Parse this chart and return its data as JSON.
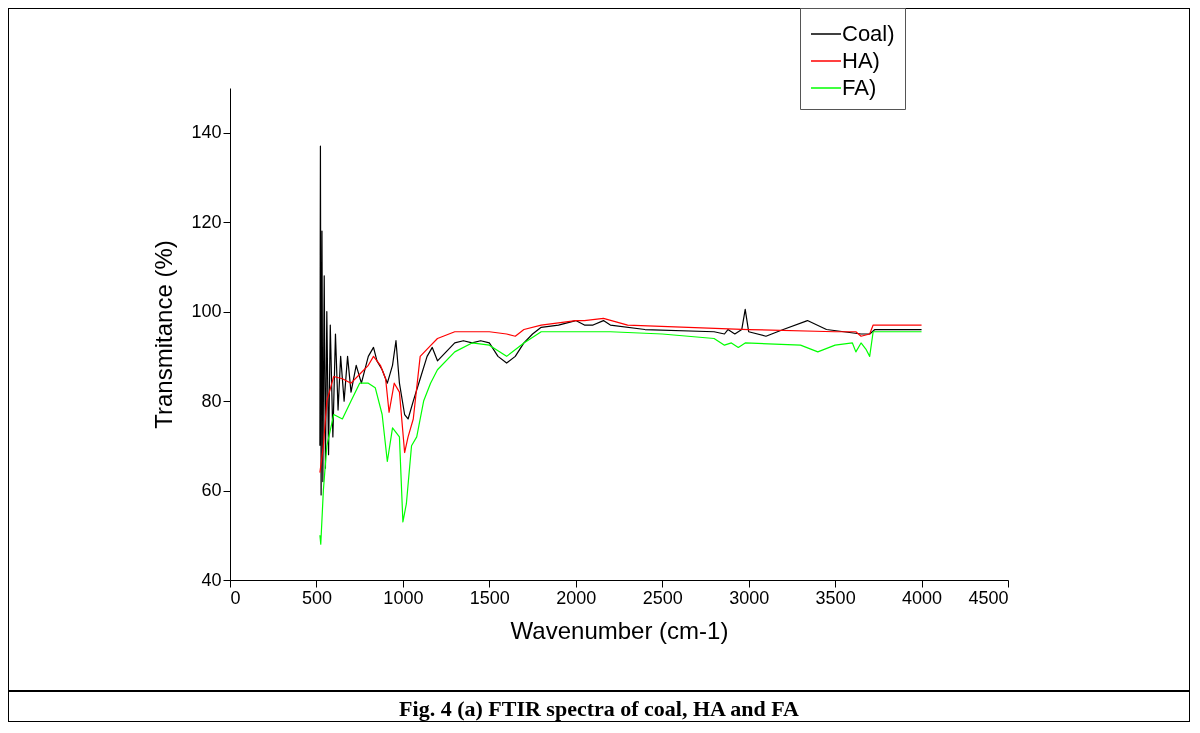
{
  "chart_data": {
    "type": "line",
    "xlabel": "Wavenumber (cm-1)",
    "ylabel": "Transmitance (%)",
    "xlim": [
      0,
      4500
    ],
    "xticks": [
      0,
      500,
      1000,
      1500,
      2000,
      2500,
      3000,
      3500,
      4000,
      4500
    ],
    "ylim": [
      40,
      150
    ],
    "yticks": [
      40,
      60,
      80,
      100,
      120,
      140
    ],
    "grid": false,
    "legend": "top right",
    "marker": "none",
    "line_style": "solid",
    "annotations": [
      "Fig. 4 (a)  FTIR spectra of coal, HA and FA"
    ],
    "series": [
      {
        "name": "Coal)",
        "color": "#000000",
        "x": [
          520,
          523,
          527,
          532,
          537,
          545,
          552,
          560,
          570,
          580,
          595,
          610,
          625,
          640,
          660,
          680,
          700,
          730,
          760,
          800,
          830,
          850,
          880,
          910,
          940,
          960,
          980,
          1010,
          1030,
          1060,
          1100,
          1140,
          1170,
          1200,
          1250,
          1300,
          1350,
          1400,
          1450,
          1500,
          1550,
          1600,
          1650,
          1700,
          1750,
          1800,
          1900,
          2000,
          2050,
          2100,
          2160,
          2200,
          2400,
          2800,
          2860,
          2880,
          2920,
          2960,
          2980,
          3000,
          3100,
          3200,
          3340,
          3450,
          3550,
          3650,
          3700,
          3730,
          4000
        ],
        "values": [
          70,
          137,
          59,
          118,
          62,
          108,
          65,
          100,
          68,
          97,
          72,
          95,
          78,
          90,
          80,
          90,
          82,
          88,
          84,
          90,
          92,
          89,
          87,
          84,
          88,
          93.5,
          84,
          77,
          76,
          80,
          85,
          90,
          92,
          89,
          91,
          93,
          93.5,
          93,
          93.5,
          93,
          90,
          88.5,
          90,
          93,
          95,
          96.5,
          97,
          98,
          97,
          97,
          98,
          97,
          96,
          95.5,
          95,
          96,
          95,
          96,
          100.5,
          95.5,
          94.5,
          96,
          98,
          96,
          95.5,
          95,
          95,
          96,
          96
        ]
      },
      {
        "name": "HA)",
        "color": "#ff0000",
        "x": [
          520,
          540,
          560,
          600,
          650,
          700,
          750,
          800,
          830,
          870,
          900,
          920,
          950,
          980,
          1010,
          1030,
          1060,
          1100,
          1150,
          1200,
          1300,
          1400,
          1500,
          1600,
          1650,
          1700,
          1800,
          2000,
          2050,
          2160,
          2300,
          3000,
          3500,
          3620,
          3650,
          3700,
          3720,
          4000
        ],
        "values": [
          64,
          70,
          80,
          85.5,
          85,
          84,
          86,
          88,
          90,
          88,
          85,
          77.5,
          84,
          82,
          68.5,
          72,
          76,
          90,
          92,
          94,
          95.5,
          95.5,
          95.5,
          95,
          94.5,
          96,
          97,
          98,
          98,
          98.5,
          97,
          96,
          95.5,
          95.5,
          94.5,
          95,
          97,
          97
        ]
      },
      {
        "name": "FA)",
        "color": "#00ff00",
        "x": [
          520,
          525,
          540,
          560,
          600,
          650,
          700,
          750,
          800,
          840,
          880,
          910,
          940,
          980,
          1000,
          1020,
          1050,
          1080,
          1120,
          1160,
          1200,
          1300,
          1400,
          1500,
          1600,
          1700,
          1800,
          2000,
          2200,
          2500,
          2800,
          2860,
          2900,
          2940,
          2980,
          3300,
          3400,
          3500,
          3600,
          3620,
          3650,
          3680,
          3700,
          3720,
          4000
        ],
        "values": [
          50,
          48,
          60,
          70,
          77,
          76,
          80,
          84,
          84,
          83,
          77,
          66.5,
          74,
          72,
          53,
          57,
          70,
          72,
          80,
          84,
          87,
          91,
          93,
          92.5,
          90,
          93,
          95.5,
          95.5,
          95.5,
          95,
          94,
          92.5,
          93,
          92,
          93,
          92.5,
          91,
          92.5,
          93,
          91,
          93,
          91.5,
          90,
          95.5,
          95.5
        ]
      }
    ]
  }
}
